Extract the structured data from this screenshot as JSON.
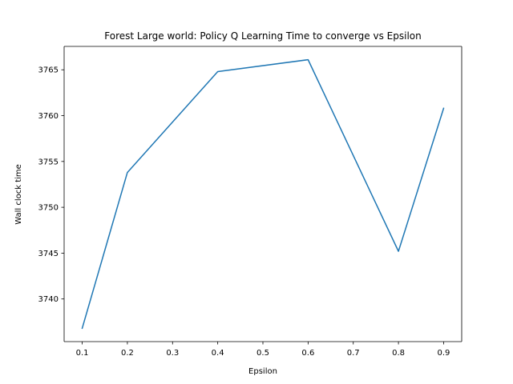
{
  "chart_data": {
    "type": "line",
    "title": "Forest Large world: Policy Q Learning Time to converge vs Epsilon",
    "xlabel": "Epsilon",
    "ylabel": "Wall clock time",
    "x": [
      0.1,
      0.2,
      0.4,
      0.6,
      0.8,
      0.9
    ],
    "series": [
      {
        "values": [
          3736.8,
          3753.8,
          3764.8,
          3766.1,
          3745.2,
          3760.8
        ],
        "color": "#1f77b4"
      }
    ],
    "xlim": [
      0.06,
      0.94
    ],
    "ylim": [
      3735.35,
      3767.55
    ],
    "xticks": [
      0.1,
      0.2,
      0.3,
      0.4,
      0.5,
      0.6,
      0.7,
      0.8,
      0.9
    ],
    "xtick_labels": [
      "0.1",
      "0.2",
      "0.3",
      "0.4",
      "0.5",
      "0.6",
      "0.7",
      "0.8",
      "0.9"
    ],
    "yticks": [
      3740,
      3745,
      3750,
      3755,
      3760,
      3765
    ],
    "ytick_labels": [
      "3740",
      "3745",
      "3750",
      "3755",
      "3760",
      "3765"
    ],
    "grid": false,
    "legend": "none"
  }
}
